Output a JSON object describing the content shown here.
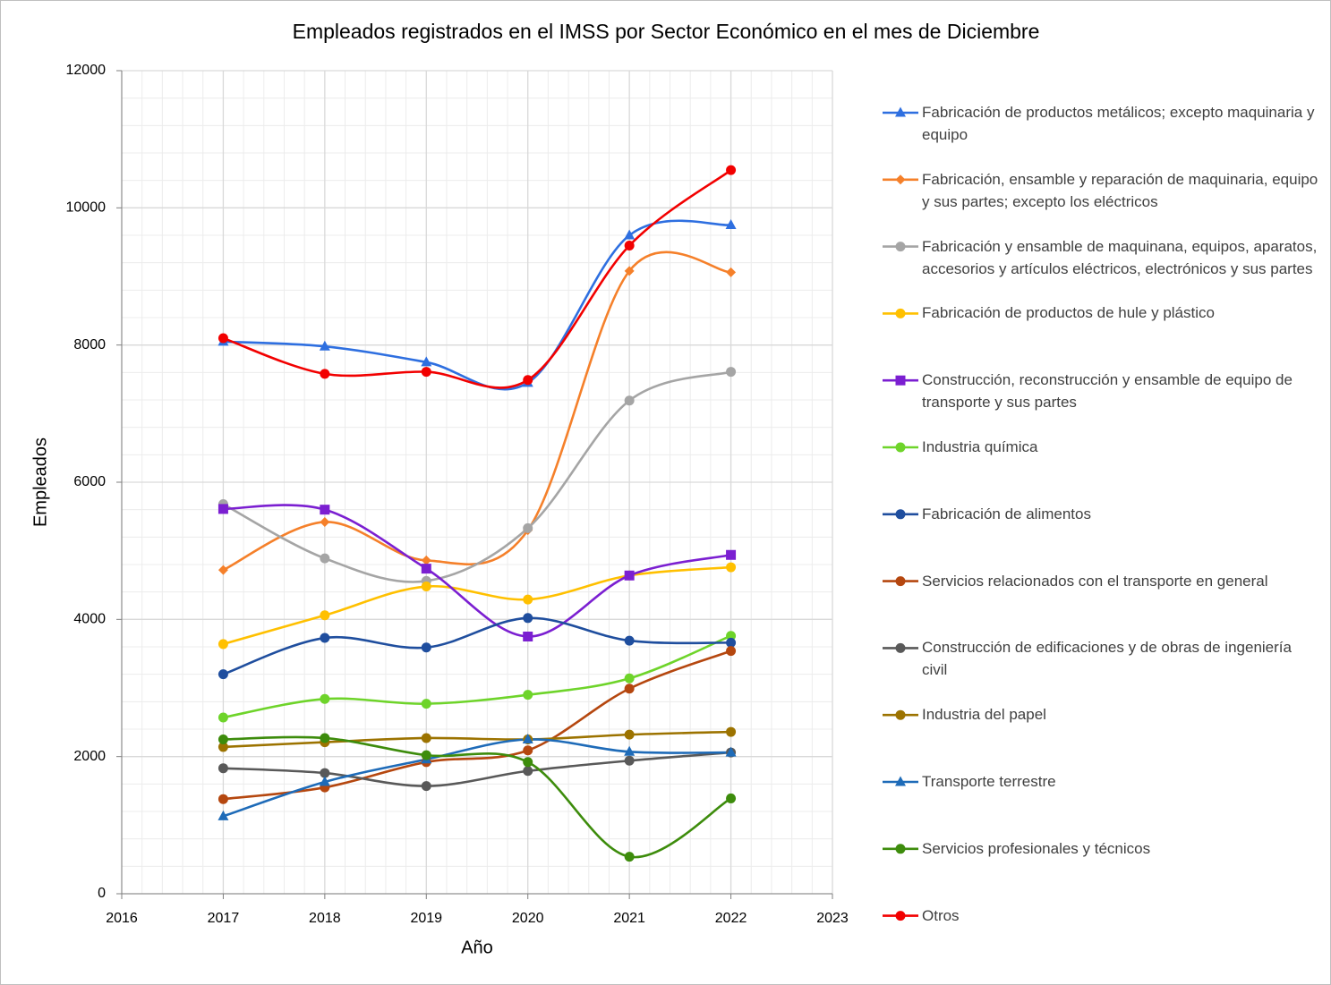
{
  "chart_data": {
    "type": "line",
    "title": "Empleados registrados en el IMSS por Sector Económico en el mes de Diciembre",
    "x_label": "Año",
    "y_label": "Empleados",
    "x": [
      2017,
      2018,
      2019,
      2020,
      2021,
      2022
    ],
    "xlim": [
      2016,
      2023
    ],
    "xticks": [
      2016,
      2017,
      2018,
      2019,
      2020,
      2021,
      2022,
      2023
    ],
    "ylim": [
      0,
      12000
    ],
    "yticks": [
      0,
      2000,
      4000,
      6000,
      8000,
      10000,
      12000
    ],
    "grid": true,
    "smooth": true,
    "legend": "right",
    "series": [
      {
        "name": "Fabricación de productos metálicos; excepto maquinaria y equipo",
        "color": "#2e6fe0",
        "marker": "triangle",
        "values": [
          8050,
          7980,
          7750,
          7450,
          9600,
          9750
        ]
      },
      {
        "name": "Fabricación, ensamble y reparación de maquinaria, equipo y sus partes; excepto los eléctricos",
        "color": "#f5802a",
        "marker": "diamond",
        "values": [
          4720,
          5420,
          4860,
          5300,
          9080,
          9060
        ]
      },
      {
        "name": "Fabricación y ensamble de maquinana, equipos, aparatos, accesorios y artículos eléctricos, electrónicos y sus partes",
        "color": "#a5a5a5",
        "marker": "circle",
        "values": [
          5680,
          4890,
          4560,
          5330,
          7190,
          7610
        ]
      },
      {
        "name": "Fabricación de productos de hule y plástico",
        "color": "#ffc000",
        "marker": "circle",
        "values": [
          3640,
          4060,
          4480,
          4290,
          4640,
          4760
        ]
      },
      {
        "name": "Construcción, reconstrucción y ensamble de equipo de transporte y sus partes",
        "color": "#7b1fd1",
        "marker": "square",
        "values": [
          5610,
          5600,
          4740,
          3750,
          4640,
          4940
        ]
      },
      {
        "name": "Industria química",
        "color": "#6ed42a",
        "marker": "circle",
        "values": [
          2570,
          2840,
          2770,
          2900,
          3140,
          3760
        ]
      },
      {
        "name": "Fabricación de alimentos",
        "color": "#1f4e9e",
        "marker": "circle",
        "values": [
          3200,
          3730,
          3590,
          4020,
          3690,
          3660
        ]
      },
      {
        "name": "Servicios relacionados con el transporte en general",
        "color": "#b5470f",
        "marker": "circle",
        "values": [
          1380,
          1550,
          1920,
          2090,
          2990,
          3540
        ]
      },
      {
        "name": "Construcción de edificaciones y de obras de ingeniería civil",
        "color": "#595959",
        "marker": "circle",
        "values": [
          1830,
          1760,
          1570,
          1790,
          1940,
          2060
        ]
      },
      {
        "name": "Industria del papel",
        "color": "#9c7300",
        "marker": "circle",
        "values": [
          2140,
          2210,
          2270,
          2250,
          2320,
          2360
        ]
      },
      {
        "name": "Transporte terrestre",
        "color": "#1e6bb8",
        "marker": "triangle",
        "values": [
          1130,
          1630,
          1960,
          2250,
          2070,
          2060
        ]
      },
      {
        "name": "Servicios profesionales y técnicos",
        "color": "#3d8c0c",
        "marker": "circle",
        "values": [
          2250,
          2270,
          2020,
          1920,
          540,
          1390
        ]
      },
      {
        "name": "Otros",
        "color": "#f20000",
        "marker": "circle",
        "values": [
          8100,
          7580,
          7610,
          7490,
          9450,
          10550
        ]
      }
    ]
  }
}
